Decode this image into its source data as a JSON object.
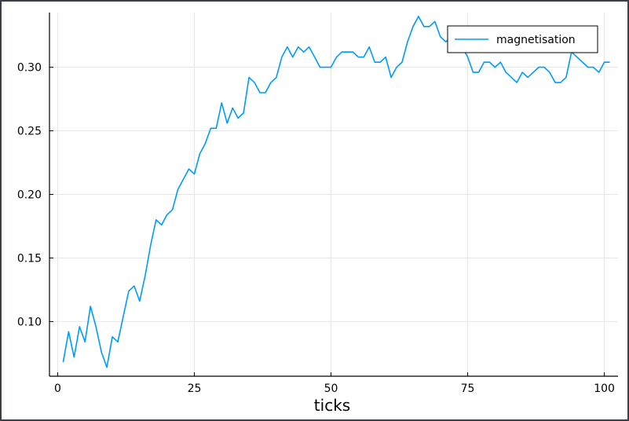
{
  "chart_data": {
    "type": "line",
    "title": "",
    "xlabel": "ticks",
    "ylabel": "",
    "xlim": [
      -1.5,
      102.5
    ],
    "ylim": [
      0.057,
      0.343
    ],
    "grid": true,
    "legend_position": "top-right",
    "x_ticks": [
      0,
      25,
      50,
      75,
      100
    ],
    "x_tick_labels": [
      "0",
      "25",
      "50",
      "75",
      "100"
    ],
    "y_ticks": [
      0.1,
      0.15,
      0.2,
      0.25,
      0.3
    ],
    "y_tick_labels": [
      "0.10",
      "0.15",
      "0.20",
      "0.25",
      "0.30"
    ],
    "series": [
      {
        "name": "magnetisation",
        "color": "#009AFA",
        "x": [
          1,
          2,
          3,
          4,
          5,
          6,
          7,
          8,
          9,
          10,
          11,
          12,
          13,
          14,
          15,
          16,
          17,
          18,
          19,
          20,
          21,
          22,
          23,
          24,
          25,
          26,
          27,
          28,
          29,
          30,
          31,
          32,
          33,
          34,
          35,
          36,
          37,
          38,
          39,
          40,
          41,
          42,
          43,
          44,
          45,
          46,
          47,
          48,
          49,
          50,
          51,
          52,
          53,
          54,
          55,
          56,
          57,
          58,
          59,
          60,
          61,
          62,
          63,
          64,
          65,
          66,
          67,
          68,
          69,
          70,
          71,
          72,
          73,
          74,
          75,
          76,
          77,
          78,
          79,
          80,
          81,
          82,
          83,
          84,
          85,
          86,
          87,
          88,
          89,
          90,
          91,
          92,
          93,
          94,
          95,
          96,
          97,
          98,
          99,
          100,
          101
        ],
        "values": [
          0.068,
          0.092,
          0.072,
          0.096,
          0.084,
          0.112,
          0.096,
          0.076,
          0.064,
          0.088,
          0.084,
          0.104,
          0.124,
          0.128,
          0.116,
          0.136,
          0.16,
          0.18,
          0.176,
          0.184,
          0.188,
          0.204,
          0.212,
          0.22,
          0.216,
          0.232,
          0.24,
          0.252,
          0.252,
          0.272,
          0.256,
          0.268,
          0.26,
          0.264,
          0.292,
          0.288,
          0.28,
          0.28,
          0.288,
          0.292,
          0.308,
          0.316,
          0.308,
          0.316,
          0.312,
          0.316,
          0.308,
          0.3,
          0.3,
          0.3,
          0.308,
          0.312,
          0.312,
          0.312,
          0.308,
          0.308,
          0.316,
          0.304,
          0.304,
          0.308,
          0.292,
          0.3,
          0.304,
          0.32,
          0.332,
          0.34,
          0.332,
          0.332,
          0.336,
          0.324,
          0.32,
          0.324,
          0.32,
          0.316,
          0.308,
          0.296,
          0.296,
          0.304,
          0.304,
          0.3,
          0.304,
          0.296,
          0.292,
          0.288,
          0.296,
          0.292,
          0.296,
          0.3,
          0.3,
          0.296,
          0.288,
          0.288,
          0.292,
          0.312,
          0.308,
          0.304,
          0.3,
          0.3,
          0.296,
          0.304,
          0.304
        ]
      }
    ]
  }
}
